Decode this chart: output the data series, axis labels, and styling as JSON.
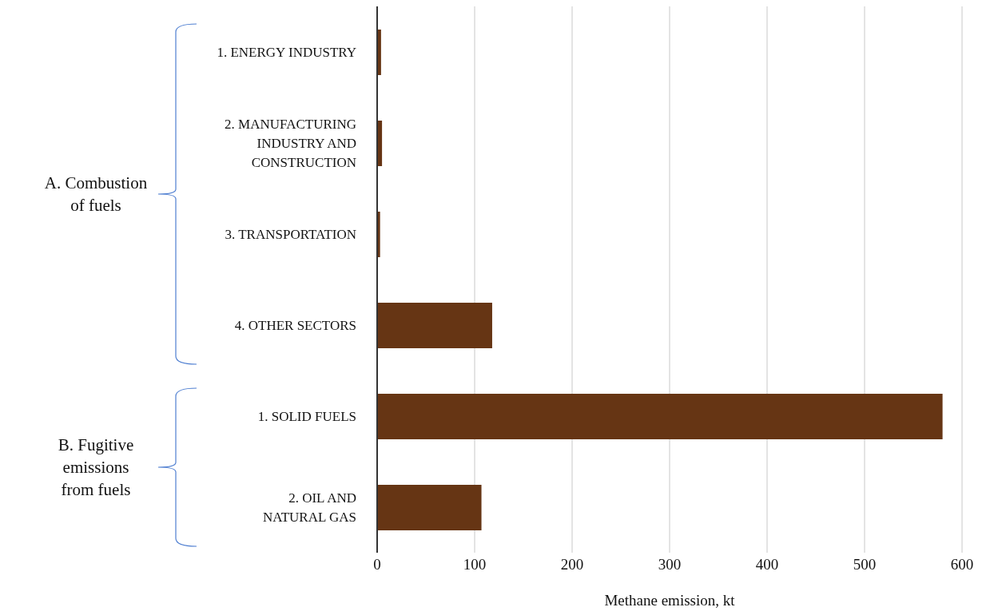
{
  "chart_data": {
    "type": "bar",
    "orientation": "horizontal",
    "xlabel": "Methane emission, kt",
    "categories": [
      "1. ENERGY INDUSTRY",
      "2. MANUFACTURING\nINDUSTRY AND\nCONSTRUCTION",
      "3. TRANSPORTATION",
      "4. OTHER SECTORS",
      "1. SOLID FUELS",
      "2. OIL AND\nNATURAL GAS"
    ],
    "values": [
      4,
      5,
      3,
      118,
      580,
      107
    ],
    "color": "#663514",
    "xlim": [
      0,
      600
    ],
    "xticks": [
      0,
      100,
      200,
      300,
      400,
      500,
      600
    ],
    "grid": "x",
    "annotations": [
      "A. Combustion\nof fuels",
      "B. Fugitive\nemissions\nfrom fuels"
    ]
  }
}
